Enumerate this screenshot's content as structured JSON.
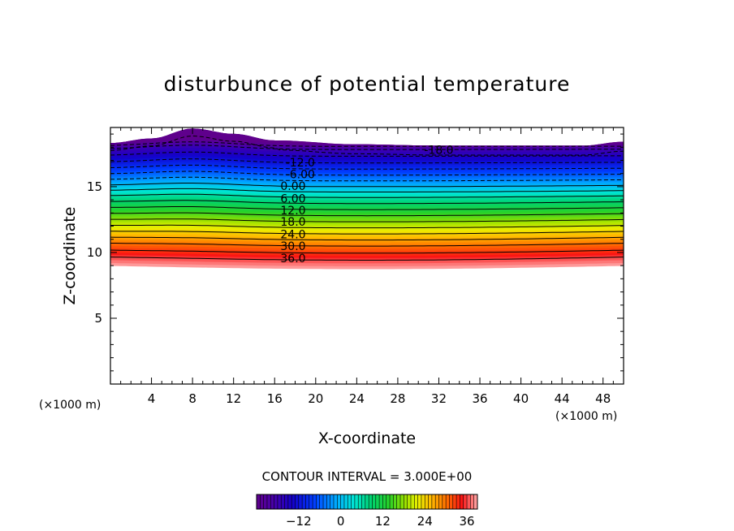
{
  "chart_data": {
    "type": "contour",
    "title": "disturbunce of potential temperature",
    "xlabel": "X-coordinate",
    "ylabel": "Z-coordinate",
    "x_unit": "(×1000 m)",
    "y_unit": "(×1000 m)",
    "xlim": [
      0,
      50
    ],
    "ylim": [
      0,
      19.5
    ],
    "x_ticks": [
      4,
      8,
      12,
      16,
      20,
      24,
      28,
      32,
      36,
      40,
      44,
      48
    ],
    "y_ticks": [
      5,
      10,
      15
    ],
    "contour_interval_text": "CONTOUR INTERVAL = 3.000E+00",
    "contour_interval": 3,
    "value_range": [
      -24,
      39
    ],
    "field": {
      "description_levels": [
        {
          "value": 39,
          "z": 9.0
        },
        {
          "value": 36,
          "z": 9.65
        },
        {
          "value": 30,
          "z": 10.7
        },
        {
          "value": 24,
          "z": 11.6
        },
        {
          "value": 18,
          "z": 12.5
        },
        {
          "value": 12,
          "z": 13.4
        },
        {
          "value": 6,
          "z": 14.3
        },
        {
          "value": 0,
          "z": 15.1
        },
        {
          "value": -6,
          "z": 15.95
        },
        {
          "value": -12,
          "z": 16.85
        },
        {
          "value": -18,
          "z": 17.85
        },
        {
          "value": -24,
          "z": 18.3
        }
      ],
      "top_boundary": [
        {
          "x": 0,
          "z": 18.3
        },
        {
          "x": 4,
          "z": 18.65
        },
        {
          "x": 8,
          "z": 19.4
        },
        {
          "x": 12,
          "z": 19.0
        },
        {
          "x": 16,
          "z": 18.5
        },
        {
          "x": 24,
          "z": 18.2
        },
        {
          "x": 32,
          "z": 18.1
        },
        {
          "x": 40,
          "z": 18.1
        },
        {
          "x": 46,
          "z": 18.1
        },
        {
          "x": 50,
          "z": 18.4
        }
      ]
    },
    "contour_labels": [
      {
        "text": "-18.0",
        "x": 32,
        "z": 17.8
      },
      {
        "text": "-12.0",
        "x": 18.5,
        "z": 16.85
      },
      {
        "text": "-6.00",
        "x": 18.5,
        "z": 15.95
      },
      {
        "text": "0.00",
        "x": 17.8,
        "z": 15.05
      },
      {
        "text": "6.00",
        "x": 17.8,
        "z": 14.1
      },
      {
        "text": "12.0",
        "x": 17.8,
        "z": 13.2
      },
      {
        "text": "18.0",
        "x": 17.8,
        "z": 12.35
      },
      {
        "text": "24.0",
        "x": 17.8,
        "z": 11.4
      },
      {
        "text": "30.0",
        "x": 17.8,
        "z": 10.5
      },
      {
        "text": "36.0",
        "x": 17.8,
        "z": 9.55
      }
    ],
    "colorbar": {
      "min": -24,
      "max": 39,
      "ticks": [
        -12,
        0,
        12,
        24,
        36
      ]
    }
  }
}
